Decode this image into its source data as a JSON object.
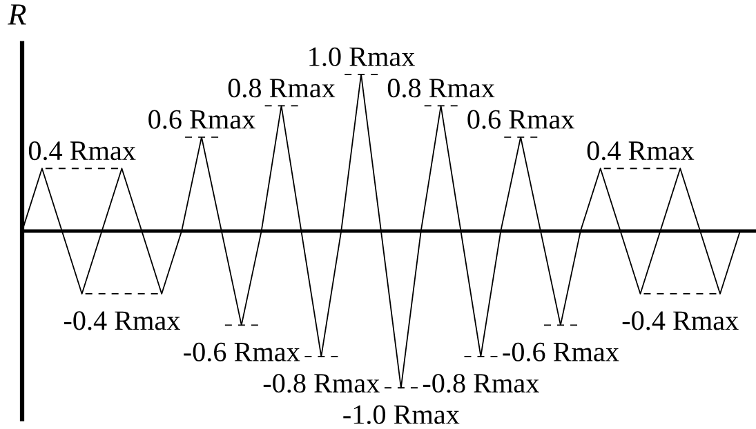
{
  "chart_data": {
    "type": "line",
    "ylabel": "R",
    "ylim": [
      -1.2,
      1.2
    ],
    "categories": [
      null,
      null,
      null,
      null,
      null,
      null,
      null,
      null,
      null,
      null,
      null,
      null,
      null,
      null,
      null,
      null,
      null,
      null,
      null,
      null,
      null,
      null,
      null,
      null,
      null,
      null,
      null,
      null,
      null,
      null,
      null,
      null,
      null,
      null,
      null,
      null,
      null
    ],
    "series": [
      {
        "color": "#000000",
        "line_style": "solid",
        "values": [
          0,
          0.4,
          0,
          -0.4,
          0,
          0.4,
          0,
          -0.4,
          0,
          0.6,
          0,
          -0.6,
          0,
          0.8,
          0,
          -0.8,
          0,
          1.0,
          0,
          -1.0,
          0,
          0.8,
          0,
          -0.8,
          0,
          0.6,
          0,
          -0.6,
          0,
          0.4,
          0,
          -0.4,
          0,
          0.4,
          0,
          -0.4,
          0
        ]
      },
      {
        "color": "#000000",
        "line_style": "dashed",
        "values": [
          null,
          0.4,
          0.4,
          0.4,
          0.4,
          0.4,
          null,
          null,
          0.6,
          0.6,
          0.6,
          null,
          0.8,
          0.8,
          0.8,
          null,
          1.0,
          1.0,
          1.0,
          null,
          0.8,
          0.8,
          0.8,
          null,
          0.6,
          0.6,
          0.6,
          null,
          null,
          0.4,
          0.4,
          0.4,
          0.4,
          0.4,
          null,
          null,
          null
        ],
        "value_labels": [
          null,
          null,
          null,
          "0.4 Rmax",
          null,
          null,
          null,
          null,
          null,
          "0.6 Rmax",
          null,
          null,
          null,
          "0.8 Rmax",
          null,
          null,
          null,
          "1.0 Rmax",
          null,
          null,
          null,
          "0.8 Rmax",
          null,
          null,
          null,
          "0.6 Rmax",
          null,
          null,
          null,
          null,
          null,
          "0.4 Rmax",
          null,
          null,
          null,
          null,
          null
        ]
      },
      {
        "color": "#000000",
        "line_style": "dashed",
        "values": [
          null,
          null,
          null,
          -0.4,
          -0.4,
          -0.4,
          -0.4,
          -0.4,
          null,
          null,
          -0.6,
          -0.6,
          -0.6,
          null,
          -0.8,
          -0.8,
          -0.8,
          null,
          -1.0,
          -1.0,
          -1.0,
          null,
          -0.8,
          -0.8,
          -0.8,
          null,
          -0.6,
          -0.6,
          -0.6,
          null,
          null,
          -0.4,
          -0.4,
          -0.4,
          -0.4,
          -0.4,
          null
        ],
        "value_labels": [
          null,
          null,
          null,
          null,
          null,
          "-0.4 Rmax",
          null,
          null,
          null,
          null,
          null,
          "-0.6 Rmax",
          null,
          null,
          null,
          "-0.8 Rmax",
          null,
          null,
          null,
          "-1.0 Rmax",
          null,
          null,
          null,
          "-0.8 Rmax",
          null,
          null,
          null,
          "-0.6 Rmax",
          null,
          null,
          null,
          null,
          null,
          "-0.4 Rmax",
          null,
          null,
          null
        ]
      }
    ]
  }
}
